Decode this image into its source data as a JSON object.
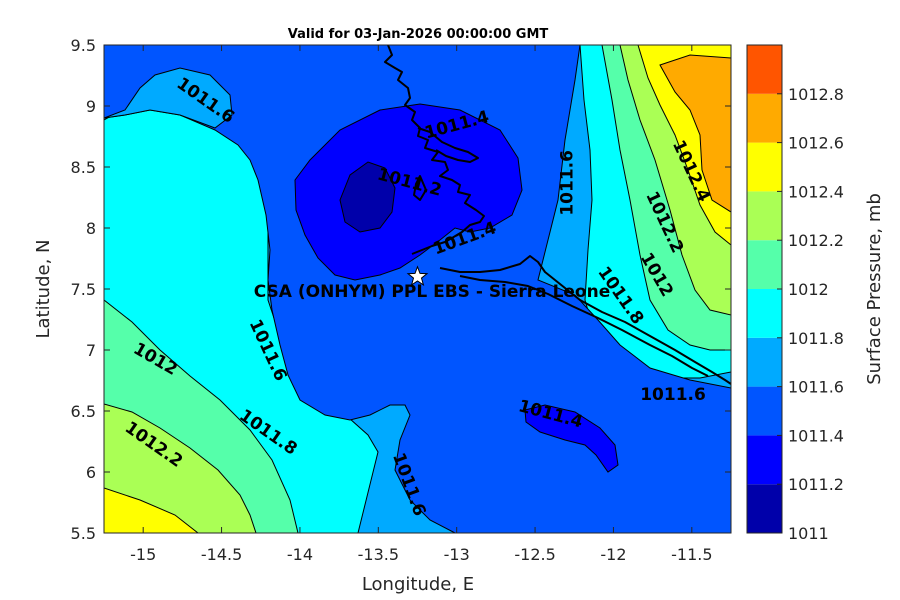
{
  "chart_data": {
    "type": "filled-contour-map",
    "title": "Valid for 03-Jan-2026 00:00:00 GMT",
    "xlabel": "Longitude, E",
    "ylabel": "Latitude, N",
    "xlim": [
      -15.25,
      -11.25
    ],
    "ylim": [
      5.5,
      9.5
    ],
    "x_ticks": [
      -15,
      -14.5,
      -14,
      -13.5,
      -13,
      -12.5,
      -12,
      -11.5
    ],
    "x_tick_labels": [
      "-15",
      "-14.5",
      "-14",
      "-13.5",
      "-13",
      "-12.5",
      "-12",
      "-11.5"
    ],
    "y_ticks": [
      5.5,
      6,
      6.5,
      7,
      7.5,
      8,
      8.5,
      9,
      9.5
    ],
    "y_tick_labels": [
      "5.5",
      "6",
      "6.5",
      "7",
      "7.5",
      "8",
      "8.5",
      "9",
      "9.5"
    ],
    "colorbar": {
      "label": "Surface Pressure, mb",
      "levels": [
        1011,
        1011.2,
        1011.4,
        1011.6,
        1011.8,
        1012,
        1012.2,
        1012.4,
        1012.6,
        1012.8
      ],
      "tick_labels": [
        "1011",
        "1011.2",
        "1011.4",
        "1011.6",
        "1011.8",
        "1012",
        "1012.2",
        "1012.4",
        "1012.6",
        "1012.8"
      ],
      "colors": [
        "#0000aa",
        "#0000ff",
        "#0055ff",
        "#00aaff",
        "#00ffff",
        "#55ffaa",
        "#aaff55",
        "#ffff00",
        "#ffaa00",
        "#ff5500"
      ]
    },
    "contour_labels": [
      {
        "text": "1011.6",
        "lon": -14.6,
        "lat": 9.05,
        "angle": 35
      },
      {
        "text": "1011.4",
        "lon": -13.0,
        "lat": 8.85,
        "angle": -15
      },
      {
        "text": "1011.2",
        "lon": -13.3,
        "lat": 8.38,
        "angle": 15
      },
      {
        "text": "1011.4",
        "lon": -12.95,
        "lat": 7.92,
        "angle": -20
      },
      {
        "text": "1011.6",
        "lon": -12.3,
        "lat": 8.37,
        "angle": -90
      },
      {
        "text": "1012.4",
        "lon": -11.5,
        "lat": 8.47,
        "angle": 65
      },
      {
        "text": "1012.2",
        "lon": -11.67,
        "lat": 8.05,
        "angle": 65
      },
      {
        "text": "1012",
        "lon": -11.72,
        "lat": 7.62,
        "angle": 60
      },
      {
        "text": "1011.8",
        "lon": -11.95,
        "lat": 7.45,
        "angle": 55
      },
      {
        "text": "1011.6",
        "lon": -14.2,
        "lat": 7.0,
        "angle": 65
      },
      {
        "text": "1012",
        "lon": -14.92,
        "lat": 6.93,
        "angle": 30
      },
      {
        "text": "1011.8",
        "lon": -14.2,
        "lat": 6.33,
        "angle": 35
      },
      {
        "text": "1011.4",
        "lon": -12.4,
        "lat": 6.48,
        "angle": 15
      },
      {
        "text": "1011.6",
        "lon": -11.62,
        "lat": 6.64,
        "angle": 0
      },
      {
        "text": "1012.2",
        "lon": -14.93,
        "lat": 6.23,
        "angle": 35
      },
      {
        "text": "1011.6",
        "lon": -13.3,
        "lat": 5.9,
        "angle": 70
      }
    ],
    "site": {
      "name": "CSA (ONHYM) PPL EBS  - Sierra Leone",
      "lon": -13.25,
      "lat": 7.6,
      "marker": "star"
    }
  }
}
